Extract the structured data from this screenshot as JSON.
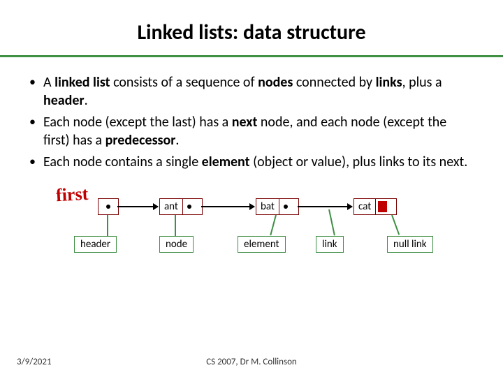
{
  "title": "Linked lists: data structure",
  "bullets": [
    {
      "pre": "A ",
      "b1": "linked list",
      "mid1": " consists of a sequence of ",
      "b2": "nodes",
      "mid2": " connected by ",
      "b3": "links",
      "mid3": ", plus a ",
      "b4": "header",
      "post": "."
    },
    {
      "pre": "Each node (except the last) has a ",
      "b1": "next",
      "mid1": " node, and each node (except the first) has a ",
      "b2": "predecessor",
      "post": "."
    },
    {
      "pre": "Each node contains a single ",
      "b1": "element",
      "mid1": " (object or value), plus links to its next.",
      "post": ""
    }
  ],
  "diagram": {
    "first_label": "first",
    "nodes": [
      {
        "label": "ant",
        "null": false
      },
      {
        "label": "bat",
        "null": false
      },
      {
        "label": "cat",
        "null": true
      }
    ],
    "label_boxes": {
      "header": "header",
      "node": "node",
      "element": "element",
      "link": "link",
      "null_link": "null link"
    }
  },
  "footer": {
    "date": "3/9/2021",
    "center": "CS 2007,  Dr M. Collinson"
  },
  "colors": {
    "rule": "#3f8f45",
    "node_border": "#7a0000",
    "accent_red": "#c00000",
    "label_border": "#3f8f45"
  }
}
